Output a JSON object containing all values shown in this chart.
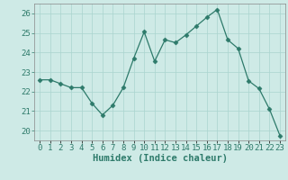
{
  "x": [
    0,
    1,
    2,
    3,
    4,
    5,
    6,
    7,
    8,
    9,
    10,
    11,
    12,
    13,
    14,
    15,
    16,
    17,
    18,
    19,
    20,
    21,
    22,
    23
  ],
  "y": [
    22.6,
    22.6,
    22.4,
    22.2,
    22.2,
    21.4,
    20.8,
    21.3,
    22.2,
    23.7,
    25.05,
    23.55,
    24.65,
    24.5,
    24.9,
    25.35,
    25.8,
    26.2,
    24.65,
    24.2,
    22.55,
    22.15,
    21.1,
    19.75
  ],
  "line_color": "#2d7a6a",
  "marker": "D",
  "marker_size": 2.5,
  "bg_color": "#ceeae6",
  "grid_color": "#aad4cf",
  "tick_label_color": "#2d7a6a",
  "xlabel": "Humidex (Indice chaleur)",
  "ylim": [
    19.5,
    26.5
  ],
  "yticks": [
    20,
    21,
    22,
    23,
    24,
    25,
    26
  ],
  "xtick_labels": [
    "0",
    "1",
    "2",
    "3",
    "4",
    "5",
    "6",
    "7",
    "8",
    "9",
    "10",
    "11",
    "12",
    "13",
    "14",
    "15",
    "16",
    "17",
    "18",
    "19",
    "20",
    "21",
    "22",
    "23"
  ],
  "xlabel_fontsize": 7.5,
  "tick_fontsize": 6.5
}
